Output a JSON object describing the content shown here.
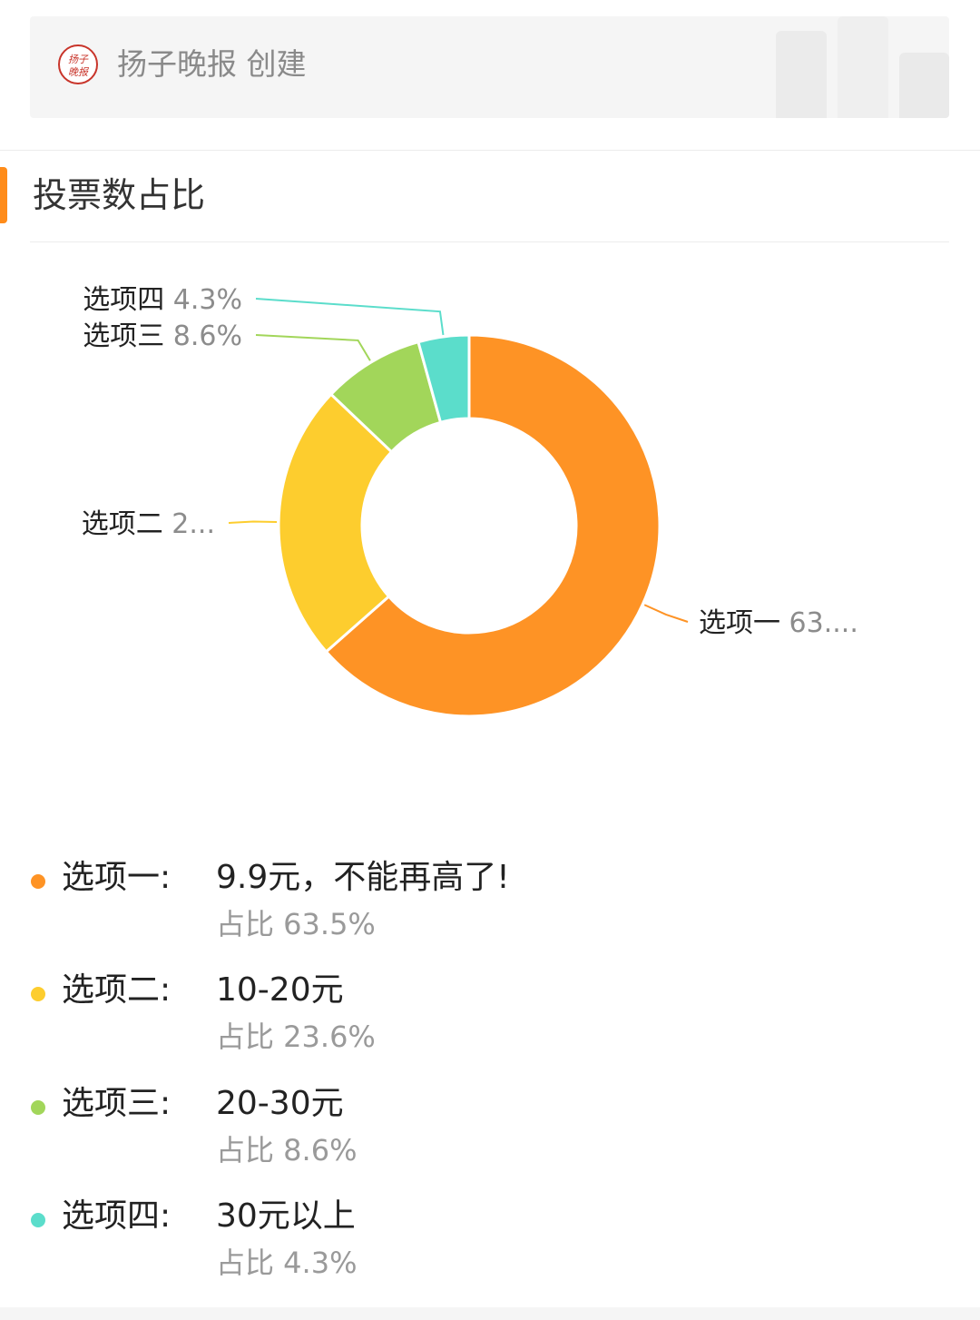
{
  "creator": {
    "name": "扬子晚报 创建",
    "logo_text": "扬子晚报"
  },
  "section": {
    "title": "投票数占比"
  },
  "colors": {
    "accent": "#ff8c1a",
    "option1": "#fe9325",
    "option2": "#fdcd2e",
    "option3": "#a2d65a",
    "option4": "#5bddcb"
  },
  "chart_data": {
    "type": "pie",
    "donut": true,
    "categories": [
      "选项一",
      "选项二",
      "选项三",
      "选项四"
    ],
    "values": [
      63.5,
      23.6,
      8.6,
      4.3
    ],
    "slice_labels": [
      {
        "name": "选项一",
        "pct": "63...."
      },
      {
        "name": "选项二",
        "pct": "2..."
      },
      {
        "name": "选项三",
        "pct": "8.6%"
      },
      {
        "name": "选项四",
        "pct": "4.3%"
      }
    ],
    "colors": [
      "#fe9325",
      "#fdcd2e",
      "#a2d65a",
      "#5bddcb"
    ]
  },
  "legend": [
    {
      "name": "选项一:",
      "value": "9.9元，不能再高了!",
      "share": "占比 63.5%",
      "color": "#fe9325"
    },
    {
      "name": "选项二:",
      "value": "10-20元",
      "share": "占比 23.6%",
      "color": "#fdcd2e"
    },
    {
      "name": "选项三:",
      "value": "20-30元",
      "share": "占比 8.6%",
      "color": "#a2d65a"
    },
    {
      "name": "选项四:",
      "value": "30元以上",
      "share": "占比 4.3%",
      "color": "#5bddcb"
    }
  ]
}
